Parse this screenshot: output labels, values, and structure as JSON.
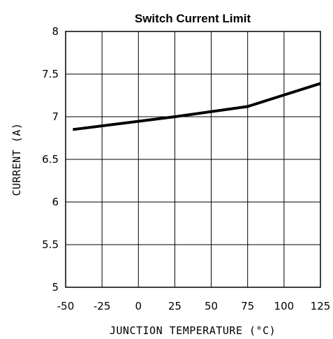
{
  "chart_data": {
    "type": "line",
    "title": "Switch Current Limit",
    "xlabel": "JUNCTION TEMPERATURE (°C)",
    "ylabel": "CURRENT (A)",
    "xlim": [
      -50,
      125
    ],
    "ylim": [
      5,
      8
    ],
    "x_ticks": [
      -50,
      -25,
      0,
      25,
      50,
      75,
      100,
      125
    ],
    "y_ticks": [
      5,
      5.5,
      6,
      6.5,
      7,
      7.5,
      8
    ],
    "x_tick_labels": [
      "-50",
      "-25",
      "0",
      "25",
      "50",
      "75",
      "100",
      "125"
    ],
    "y_tick_labels": [
      "5",
      "5.5",
      "6",
      "6.5",
      "7",
      "7.5",
      "8"
    ],
    "grid": true,
    "series": [
      {
        "x": [
          -45,
          25,
          75,
          125
        ],
        "y": [
          6.85,
          7.0,
          7.12,
          7.39
        ],
        "color": "#000000"
      }
    ]
  }
}
